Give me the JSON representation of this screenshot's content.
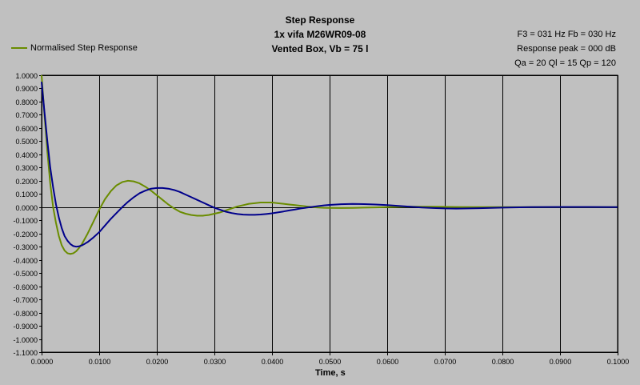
{
  "chart_data": {
    "type": "line",
    "title_lines": [
      "Step Response",
      "1x vifa M26WR09-08",
      "Vented Box, Vb = 75 l"
    ],
    "info_lines": [
      "F3 = 031 Hz  Fb = 030 Hz",
      "Response peak = 000 dB",
      "Qa = 20  Ql = 15  Qp = 120"
    ],
    "xlabel": "Time, s",
    "ylabel": "",
    "xlim": [
      0,
      0.1
    ],
    "ylim": [
      -1.1,
      1.0
    ],
    "x_ticks": [
      "0.0000",
      "0.0100",
      "0.0200",
      "0.0300",
      "0.0400",
      "0.0500",
      "0.0600",
      "0.0700",
      "0.0800",
      "0.0900",
      "0.1000"
    ],
    "y_ticks": [
      "1.0000",
      "0.9000",
      "0.8000",
      "0.7000",
      "0.6000",
      "0.5000",
      "0.4000",
      "0.3000",
      "0.2000",
      "0.1000",
      "0.0000",
      "-0.1000",
      "-0.2000",
      "-0.3000",
      "-0.4000",
      "-0.5000",
      "-0.6000",
      "-0.7000",
      "-0.8000",
      "-0.9000",
      "-1.0000",
      "-1.1000"
    ],
    "grid": true,
    "legend": {
      "position": "top-left",
      "label": "Normalised Step Response"
    },
    "colors": {
      "green": "#6a8c00",
      "blue": "#00008b",
      "plot_bg": "#c0c0c0",
      "grid": "#000000"
    },
    "series": [
      {
        "name": "Normalised Step Response",
        "color": "#6a8c00",
        "x": [
          0.0,
          0.0005,
          0.001,
          0.0015,
          0.002,
          0.0025,
          0.003,
          0.0035,
          0.004,
          0.0045,
          0.005,
          0.0055,
          0.006,
          0.0065,
          0.007,
          0.008,
          0.009,
          0.01,
          0.011,
          0.012,
          0.013,
          0.014,
          0.015,
          0.016,
          0.017,
          0.018,
          0.019,
          0.02,
          0.021,
          0.022,
          0.023,
          0.024,
          0.025,
          0.026,
          0.027,
          0.028,
          0.029,
          0.03,
          0.031,
          0.032,
          0.033,
          0.034,
          0.035,
          0.036,
          0.037,
          0.038,
          0.039,
          0.04,
          0.041,
          0.042,
          0.043,
          0.044,
          0.045,
          0.046,
          0.047,
          0.048,
          0.049,
          0.05,
          0.052,
          0.054,
          0.056,
          0.058,
          0.06,
          0.062,
          0.064,
          0.066,
          0.068,
          0.07,
          0.072,
          0.075,
          0.08,
          0.085,
          0.09,
          0.095,
          0.1
        ],
        "y": [
          1.0,
          0.7,
          0.42,
          0.18,
          0.0,
          -0.12,
          -0.22,
          -0.29,
          -0.33,
          -0.35,
          -0.355,
          -0.35,
          -0.335,
          -0.31,
          -0.28,
          -0.2,
          -0.11,
          -0.02,
          0.06,
          0.12,
          0.165,
          0.19,
          0.2,
          0.195,
          0.18,
          0.155,
          0.125,
          0.09,
          0.055,
          0.02,
          -0.01,
          -0.035,
          -0.05,
          -0.06,
          -0.065,
          -0.065,
          -0.06,
          -0.05,
          -0.04,
          -0.025,
          -0.01,
          0.005,
          0.015,
          0.025,
          0.03,
          0.035,
          0.035,
          0.035,
          0.03,
          0.025,
          0.02,
          0.015,
          0.01,
          0.005,
          0.0,
          -0.003,
          -0.005,
          -0.006,
          -0.007,
          -0.006,
          -0.004,
          -0.002,
          0.0,
          0.002,
          0.003,
          0.003,
          0.003,
          0.002,
          0.001,
          0.0,
          0.0,
          0.0,
          0.0,
          0.0,
          0.0
        ]
      },
      {
        "name": "",
        "color": "#00008b",
        "x": [
          0.0,
          0.0005,
          0.001,
          0.0015,
          0.002,
          0.0025,
          0.003,
          0.0035,
          0.004,
          0.0045,
          0.005,
          0.0055,
          0.006,
          0.0065,
          0.007,
          0.0075,
          0.008,
          0.009,
          0.01,
          0.011,
          0.012,
          0.013,
          0.014,
          0.015,
          0.016,
          0.017,
          0.018,
          0.019,
          0.02,
          0.021,
          0.022,
          0.023,
          0.024,
          0.025,
          0.026,
          0.027,
          0.028,
          0.029,
          0.03,
          0.031,
          0.032,
          0.033,
          0.034,
          0.035,
          0.036,
          0.037,
          0.038,
          0.039,
          0.04,
          0.041,
          0.042,
          0.043,
          0.044,
          0.045,
          0.046,
          0.047,
          0.048,
          0.049,
          0.05,
          0.052,
          0.054,
          0.056,
          0.058,
          0.06,
          0.062,
          0.064,
          0.066,
          0.068,
          0.07,
          0.072,
          0.074,
          0.076,
          0.078,
          0.08,
          0.082,
          0.085,
          0.09,
          0.095,
          0.1
        ],
        "y": [
          0.95,
          0.72,
          0.5,
          0.3,
          0.15,
          0.02,
          -0.08,
          -0.16,
          -0.22,
          -0.255,
          -0.28,
          -0.295,
          -0.3,
          -0.297,
          -0.29,
          -0.278,
          -0.265,
          -0.23,
          -0.19,
          -0.14,
          -0.09,
          -0.045,
          0.0,
          0.04,
          0.075,
          0.105,
          0.125,
          0.14,
          0.145,
          0.145,
          0.14,
          0.13,
          0.115,
          0.095,
          0.075,
          0.055,
          0.035,
          0.015,
          -0.005,
          -0.02,
          -0.035,
          -0.045,
          -0.052,
          -0.057,
          -0.058,
          -0.058,
          -0.056,
          -0.052,
          -0.047,
          -0.04,
          -0.033,
          -0.025,
          -0.018,
          -0.01,
          -0.004,
          0.002,
          0.008,
          0.013,
          0.017,
          0.022,
          0.024,
          0.023,
          0.02,
          0.015,
          0.009,
          0.003,
          -0.003,
          -0.007,
          -0.01,
          -0.011,
          -0.01,
          -0.008,
          -0.006,
          -0.004,
          -0.002,
          0.0,
          0.001,
          0.001,
          0.0
        ]
      }
    ]
  }
}
